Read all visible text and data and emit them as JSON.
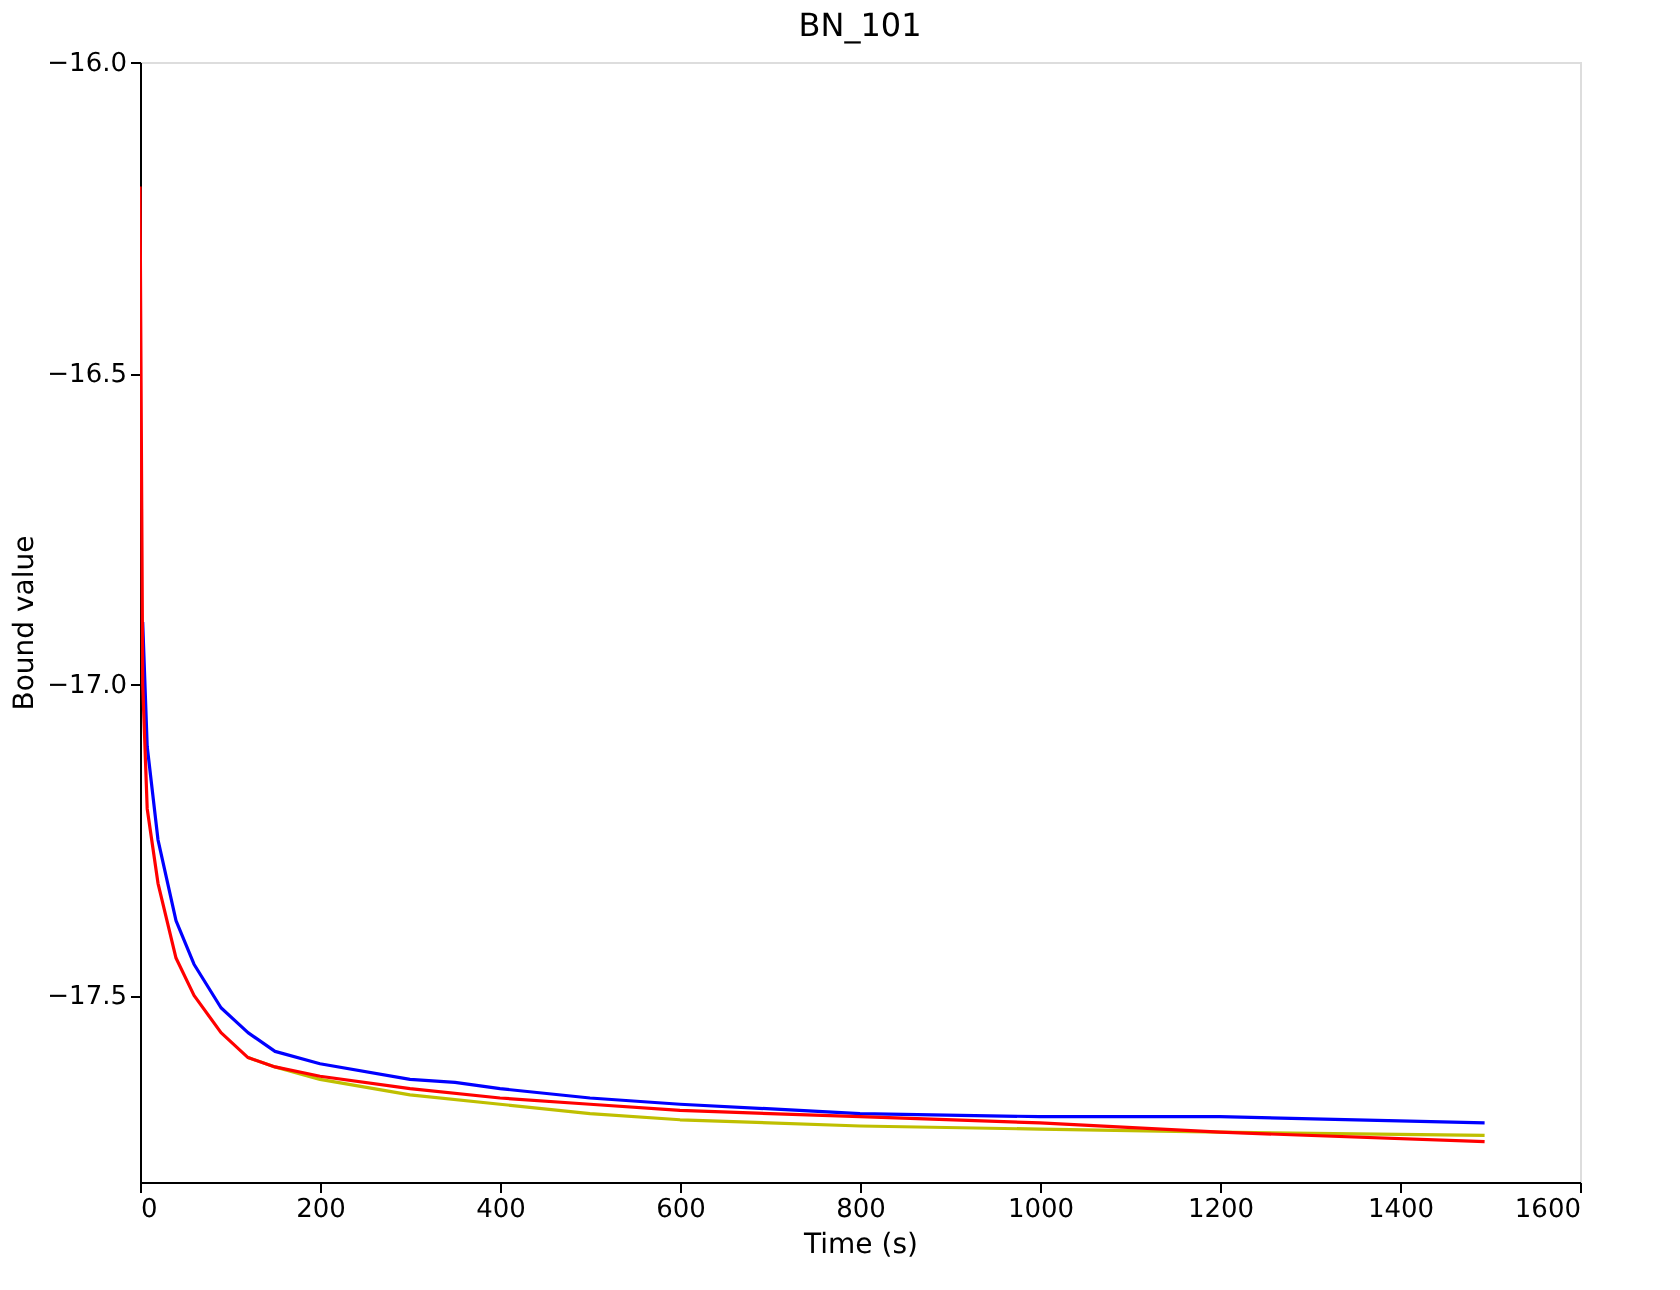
{
  "chart_data": {
    "type": "line",
    "title": "BN_101",
    "xlabel": "Time (s)",
    "ylabel": "Bound value",
    "xlim": [
      0,
      1600
    ],
    "xticks": [
      0,
      200,
      400,
      600,
      800,
      1000,
      1200,
      1400,
      1600
    ],
    "ylim": [
      -17.8,
      -16.0
    ],
    "yticks": [
      -17.5,
      {
        "value": -17.0,
        "label": "−17.0"
      },
      -16.5,
      {
        "value": -16.0,
        "label": "−16.0"
      }
    ],
    "grid": false,
    "legend": false,
    "line_style": "solid",
    "marker": "none",
    "series": [
      {
        "color": "#0000ff",
        "x": [
          3,
          8,
          20,
          40,
          60,
          90,
          120,
          150,
          200,
          300,
          350,
          400,
          500,
          600,
          800,
          1000,
          1200,
          1494
        ],
        "values": [
          -16.9,
          -17.1,
          -17.25,
          -17.38,
          -17.45,
          -17.52,
          -17.56,
          -17.59,
          -17.61,
          -17.635,
          -17.64,
          -17.65,
          -17.665,
          -17.675,
          -17.69,
          -17.695,
          -17.695,
          -17.705
        ]
      },
      {
        "color": "#bfbf00",
        "x": [
          120,
          150,
          200,
          300,
          400,
          500,
          600,
          800,
          1000,
          1200,
          1494
        ],
        "values": [
          -17.6,
          -17.615,
          -17.635,
          -17.66,
          -17.675,
          -17.69,
          -17.7,
          -17.71,
          -17.715,
          -17.72,
          -17.725
        ]
      },
      {
        "color": "#ff0000",
        "x": [
          0,
          3,
          8,
          20,
          40,
          60,
          90,
          120,
          150,
          200,
          300,
          400,
          500,
          600,
          800,
          1000,
          1200,
          1494
        ],
        "values": [
          -16.2,
          -17.0,
          -17.2,
          -17.32,
          -17.44,
          -17.5,
          -17.56,
          -17.6,
          -17.615,
          -17.63,
          -17.65,
          -17.665,
          -17.675,
          -17.685,
          -17.695,
          -17.705,
          -17.72,
          -17.735
        ]
      }
    ]
  }
}
